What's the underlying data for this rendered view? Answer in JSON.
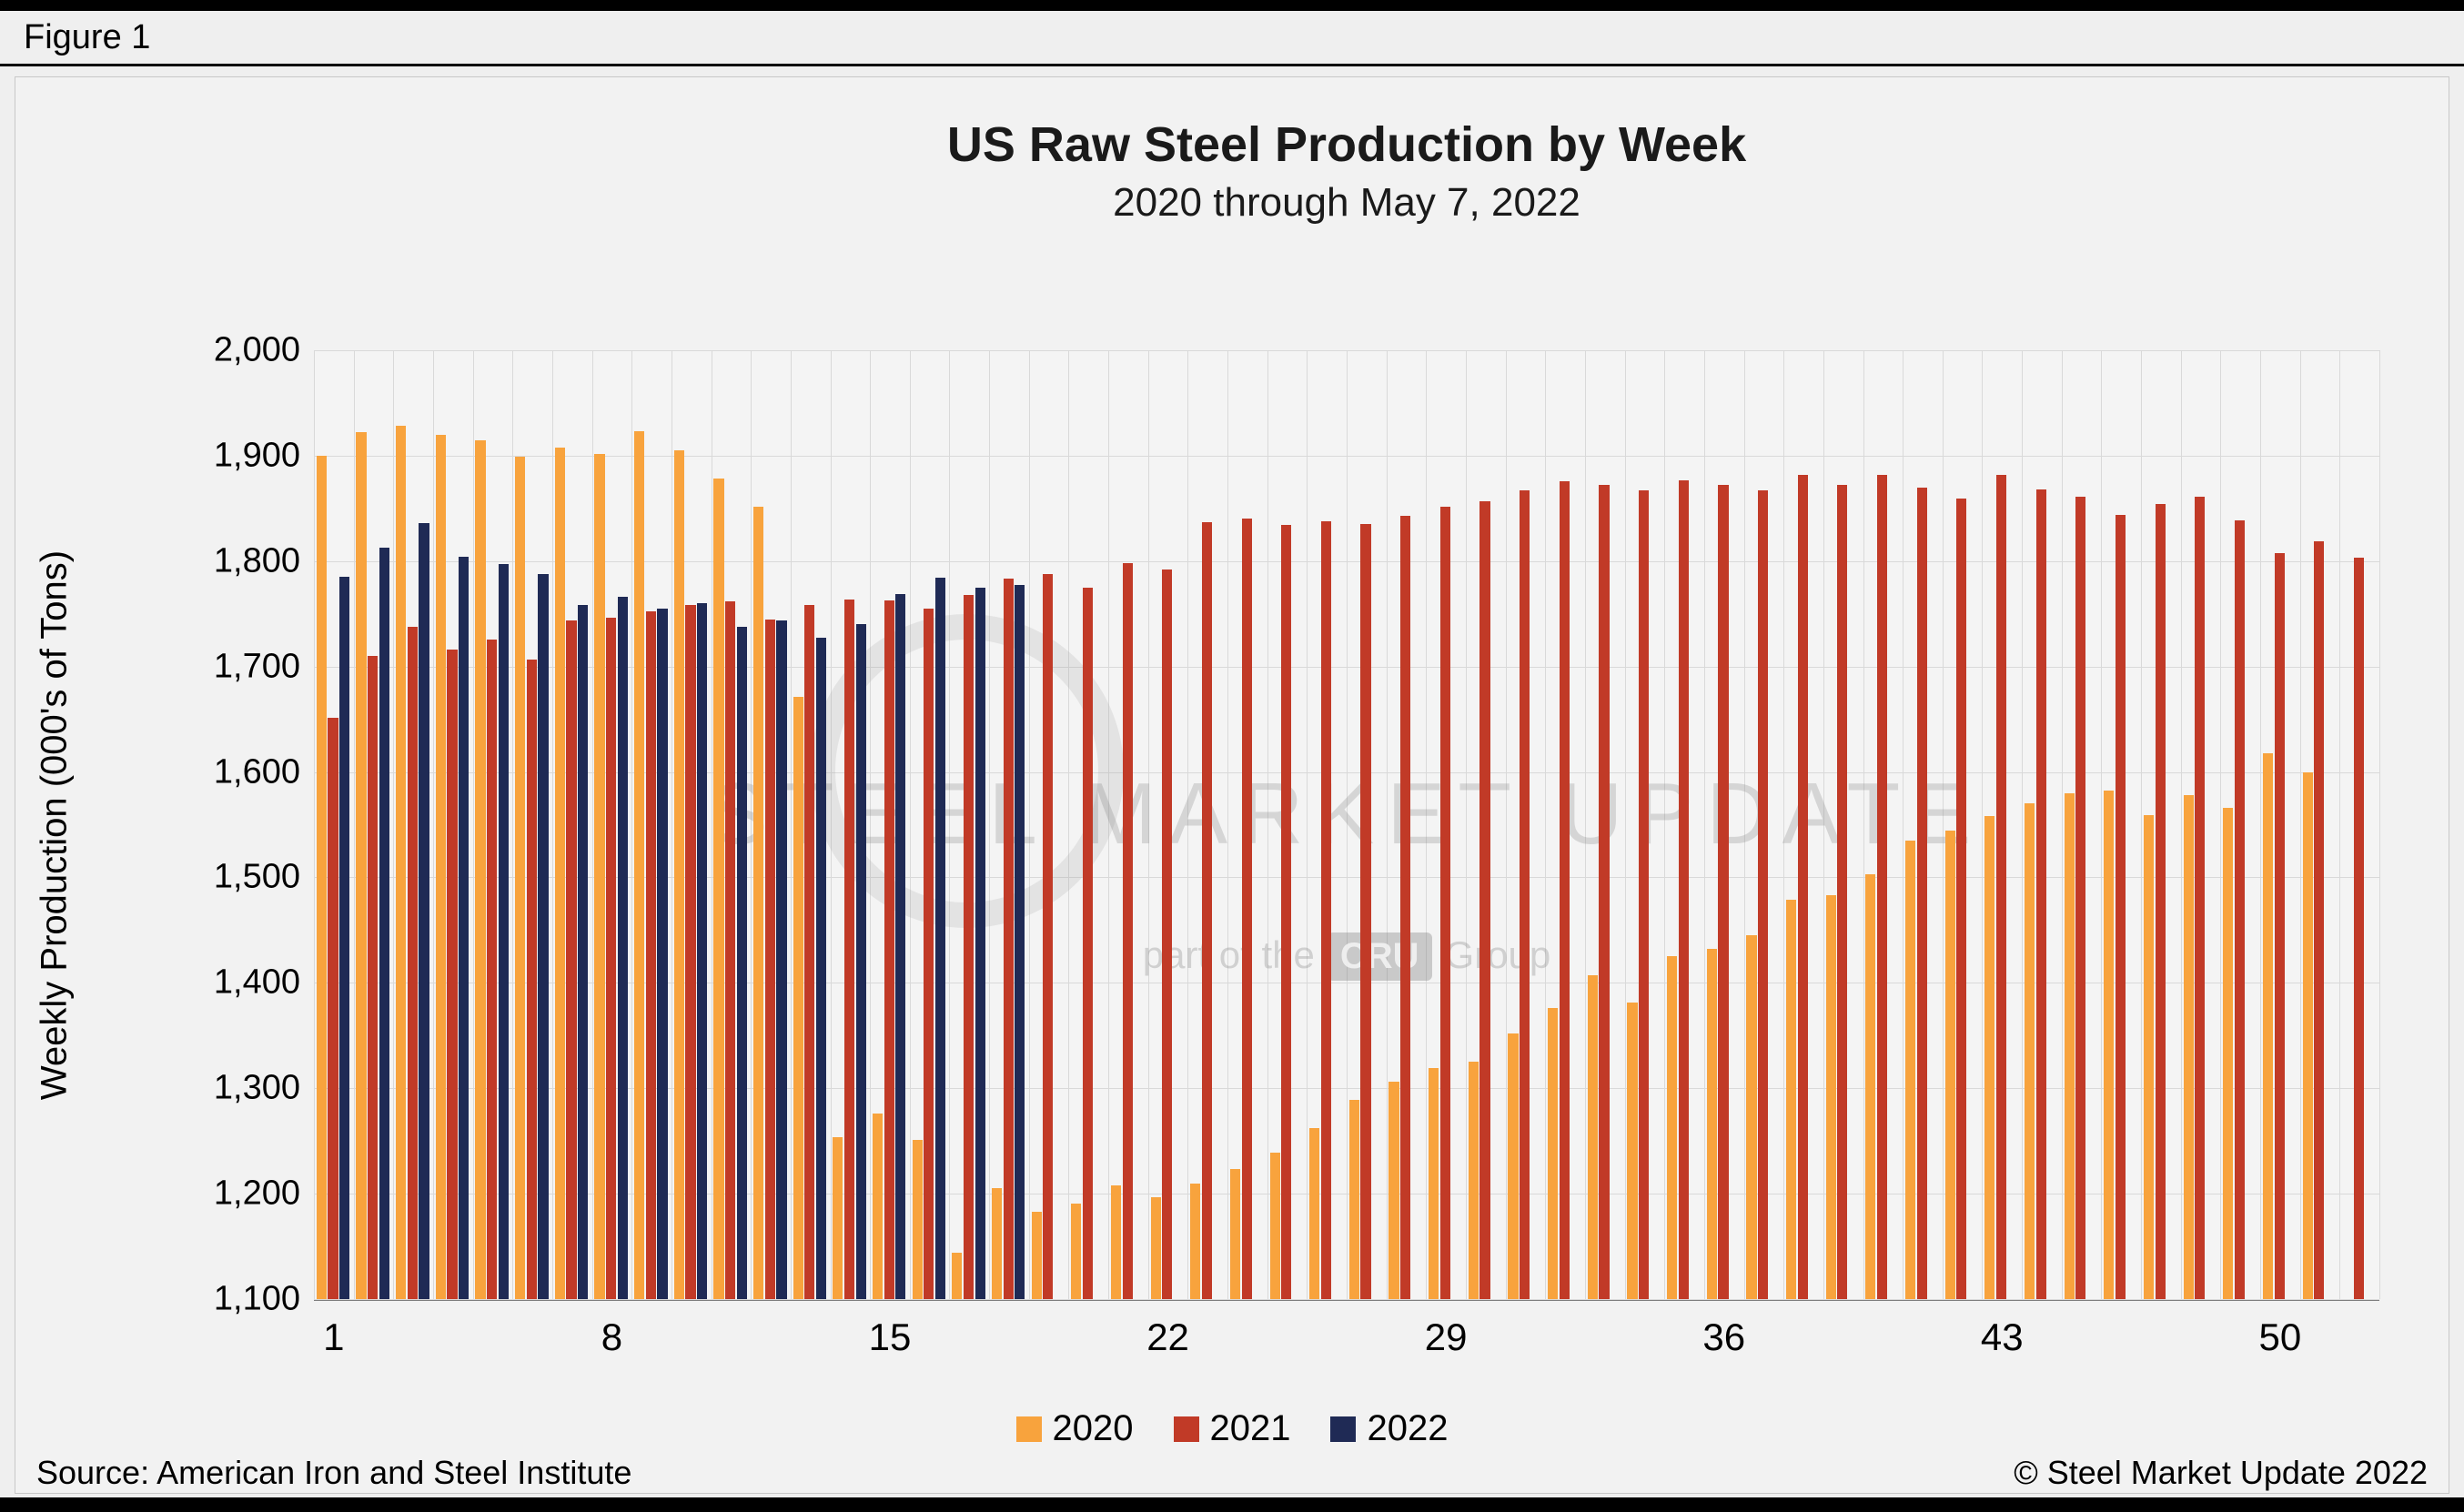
{
  "figure_label": "Figure 1",
  "chart_data": {
    "type": "bar",
    "title": "US Raw Steel Production by Week",
    "subtitle": "2020 through May 7, 2022",
    "xlabel": "",
    "ylabel": "Weekly Production (000's of Tons)",
    "ylim": [
      1100,
      2000
    ],
    "ytick_step": 100,
    "ytick_labels": [
      "1,100",
      "1,200",
      "1,300",
      "1,400",
      "1,500",
      "1,600",
      "1,700",
      "1,800",
      "1,900",
      "2,000"
    ],
    "xticks": [
      1,
      8,
      15,
      22,
      29,
      36,
      43,
      50
    ],
    "weeks": 52,
    "grid": true,
    "legend_position": "bottom",
    "series": [
      {
        "name": "2020",
        "color": "#F8A33D",
        "values": [
          1900,
          1922,
          1928,
          1920,
          1915,
          1899,
          1908,
          1902,
          1923,
          1905,
          1878,
          1852,
          1671,
          1254,
          1276,
          1251,
          1144,
          1205,
          1183,
          1191,
          1208,
          1197,
          1210,
          1223,
          1239,
          1262,
          1289,
          1306,
          1319,
          1325,
          1352,
          1376,
          1407,
          1381,
          1425,
          1432,
          1445,
          1479,
          1483,
          1503,
          1535,
          1544,
          1558,
          1570,
          1580,
          1582,
          1559,
          1578,
          1566,
          1618,
          1600,
          null
        ]
      },
      {
        "name": "2021",
        "color": "#C13A27",
        "values": [
          1651,
          1710,
          1738,
          1716,
          1726,
          1707,
          1744,
          1746,
          1752,
          1758,
          1762,
          1745,
          1758,
          1764,
          1763,
          1755,
          1768,
          1783,
          1788,
          1775,
          1798,
          1792,
          1837,
          1840,
          1834,
          1838,
          1835,
          1843,
          1852,
          1857,
          1867,
          1876,
          1872,
          1867,
          1877,
          1872,
          1867,
          1882,
          1872,
          1882,
          1870,
          1859,
          1882,
          1868,
          1861,
          1844,
          1854,
          1861,
          1839,
          1808,
          1819,
          1803
        ]
      },
      {
        "name": "2022",
        "color": "#1F2A55",
        "values": [
          1785,
          1813,
          1836,
          1804,
          1797,
          1788,
          1758,
          1766,
          1755,
          1760,
          1738,
          1744,
          1727,
          1740,
          1769,
          1784,
          1775,
          1777,
          null,
          null,
          null,
          null,
          null,
          null,
          null,
          null,
          null,
          null,
          null,
          null,
          null,
          null,
          null,
          null,
          null,
          null,
          null,
          null,
          null,
          null,
          null,
          null,
          null,
          null,
          null,
          null,
          null,
          null,
          null,
          null,
          null,
          null
        ]
      }
    ]
  },
  "watermark": {
    "line1": "STEEL MARKET UPDATE",
    "line2_prefix": "part of the",
    "badge": "CRU",
    "line2_suffix": "Group"
  },
  "footer": {
    "source": "Source: American Iron and Steel Institute",
    "copyright": "© Steel Market Update 2022"
  }
}
